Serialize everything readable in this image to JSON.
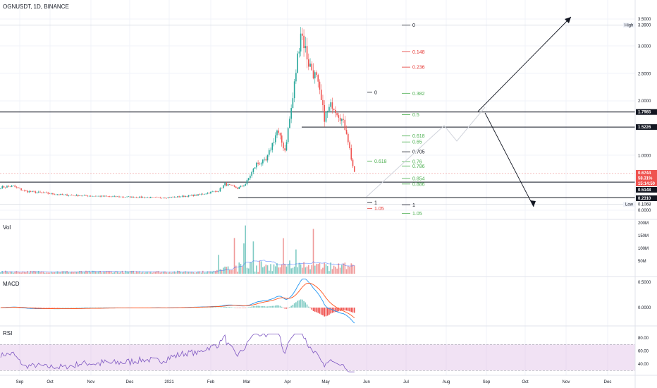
{
  "header": {
    "symbol": "OGNUSDT, 1D, BINANCE"
  },
  "colors": {
    "up": "#26a69a",
    "down": "#ef5350",
    "fib_green": "#4caf50",
    "fib_red": "#e53935",
    "fib_dark": "#131722",
    "macd_line": "#2196f3",
    "signal_line": "#ff5722",
    "rsi_line": "#7e57c2",
    "rsi_band": "#e1bee7",
    "grid": "#f0f3fa"
  },
  "time_axis": [
    "Sep",
    "Oct",
    "Nov",
    "Dec",
    "2021",
    "Feb",
    "Mar",
    "Apr",
    "May",
    "Jun",
    "Jul",
    "Aug",
    "Sep",
    "Oct",
    "Nov",
    "Dec"
  ],
  "chart_data": [
    {
      "type": "candlestick",
      "pane": "price",
      "title": "OGNUSDT, 1D, BINANCE",
      "y_ticks": [
        "3.5000",
        "3.0000",
        "2.5000",
        "2.0000",
        "1.5000",
        "1.0000",
        "0.5000",
        "0.0000"
      ],
      "ylim": [
        -0.06,
        3.65
      ],
      "markers": {
        "high": "3.3900",
        "low": "0.1068",
        "high_label": "High",
        "low_label": "Low"
      },
      "price_tags": [
        {
          "label": "1.7985",
          "value": 1.7985,
          "style": "dark"
        },
        {
          "label": "1.5226",
          "value": 1.5226,
          "style": "dark"
        },
        {
          "label": "0.6744",
          "value": 0.6744,
          "style": "red"
        },
        {
          "label": "58.31%",
          "value": 0.59,
          "style": "red"
        },
        {
          "label": "15:14:50",
          "value": 0.5,
          "style": "red"
        },
        {
          "label": "0.5148",
          "value": 0.5148,
          "style": "dark"
        },
        {
          "label": "0.2310",
          "value": 0.231,
          "style": "dark"
        }
      ],
      "horizontal_levels": [
        1.7985,
        1.5226,
        0.5148,
        0.231
      ],
      "fib_main": [
        {
          "label": "0",
          "value": 3.39,
          "color": "dark"
        },
        {
          "label": "0.148",
          "value": 2.9,
          "color": "red"
        },
        {
          "label": "0.236",
          "value": 2.62,
          "color": "red"
        },
        {
          "label": "0.382",
          "value": 2.14,
          "color": "green"
        },
        {
          "label": "0.5",
          "value": 1.75,
          "color": "green"
        },
        {
          "label": "0.618",
          "value": 1.36,
          "color": "green"
        },
        {
          "label": "0.65",
          "value": 1.25,
          "color": "green"
        },
        {
          "label": "0.705",
          "value": 1.07,
          "color": "dark"
        },
        {
          "label": "0.76",
          "value": 0.89,
          "color": "green"
        },
        {
          "label": "0.786",
          "value": 0.81,
          "color": "green"
        },
        {
          "label": "0.854",
          "value": 0.58,
          "color": "green"
        },
        {
          "label": "0.886",
          "value": 0.48,
          "color": "green"
        },
        {
          "label": "1",
          "value": 0.1,
          "color": "dark"
        },
        {
          "label": "1.05",
          "value": -0.06,
          "color": "green"
        }
      ],
      "fib_secondary": [
        {
          "label": "0",
          "value": 2.16,
          "color": "dark"
        },
        {
          "label": "0.618",
          "value": 0.9,
          "color": "green"
        },
        {
          "label": "1",
          "value": 0.14,
          "color": "dark"
        },
        {
          "label": "1.05",
          "value": 0.03,
          "color": "red"
        }
      ]
    },
    {
      "type": "bar",
      "pane": "volume",
      "title": "Vol",
      "y_ticks": [
        "200M",
        "150M",
        "100M",
        "50M"
      ],
      "ylim": [
        0,
        200
      ]
    },
    {
      "type": "line",
      "pane": "macd",
      "title": "MACD",
      "y_ticks": [
        "0.5000",
        "0.0000"
      ],
      "ylim": [
        -0.32,
        0.55
      ]
    },
    {
      "type": "line",
      "pane": "rsi",
      "title": "RSI",
      "y_ticks": [
        "80.00",
        "60.00",
        "40.00"
      ],
      "ylim": [
        25,
        88
      ],
      "band": [
        30,
        70
      ]
    }
  ]
}
